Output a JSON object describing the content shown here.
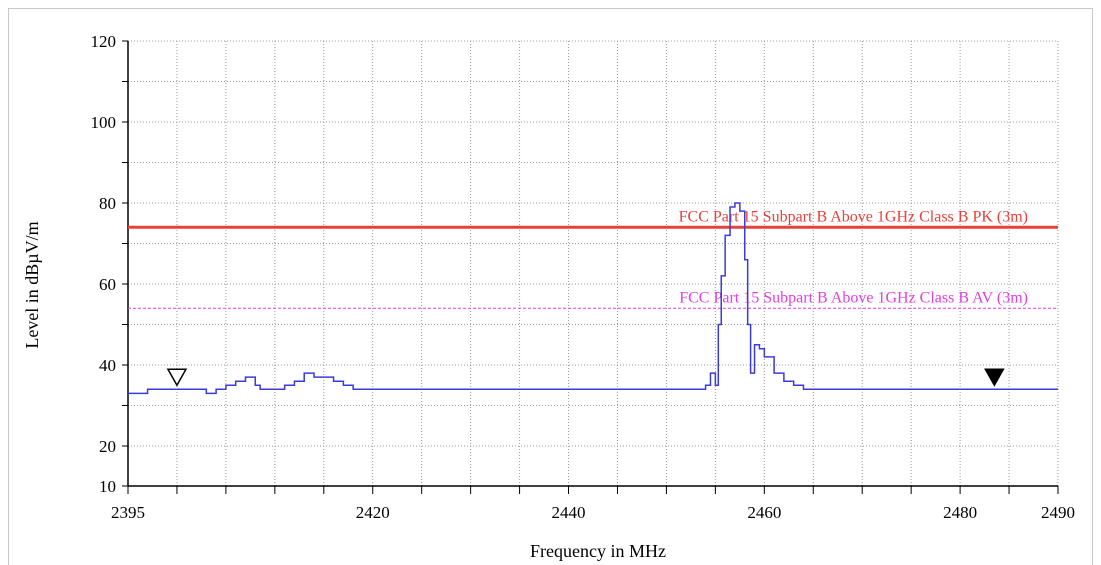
{
  "chart_data": {
    "type": "line",
    "xlabel": "Frequency in MHz",
    "ylabel": "Level in dBµV/m",
    "xlim": [
      2395,
      2490
    ],
    "ylim": [
      10,
      120
    ],
    "x_ticks": [
      2395,
      2420,
      2440,
      2460,
      2480,
      2490
    ],
    "y_ticks": [
      10,
      20,
      40,
      60,
      80,
      100,
      120
    ],
    "grid": true,
    "limits": [
      {
        "name": "FCC Part 15 Subpart B Above 1GHz Class B PK (3m)",
        "value": 74,
        "color": "#e8403a",
        "style": "solid"
      },
      {
        "name": "FCC Part 15 Subpart B Above 1GHz Class B AV (3m)",
        "value": 54,
        "color": "#e040e0",
        "style": "dashed"
      }
    ],
    "series": [
      {
        "color": "#3b3bdc",
        "x": [
          2395,
          2396,
          2397,
          2398,
          2399,
          2400,
          2401,
          2402,
          2403,
          2404,
          2405,
          2406,
          2407,
          2408,
          2408.5,
          2409,
          2410,
          2411,
          2412,
          2413,
          2413.5,
          2414,
          2415,
          2416,
          2417,
          2418,
          2419,
          2420,
          2422,
          2424,
          2426,
          2428,
          2430,
          2432,
          2434,
          2436,
          2438,
          2440,
          2442,
          2444,
          2446,
          2448,
          2450,
          2452,
          2453,
          2454,
          2454.5,
          2455,
          2455.3,
          2455.6,
          2456,
          2456.5,
          2457,
          2457.5,
          2458,
          2458.3,
          2458.6,
          2459,
          2459.5,
          2460,
          2461,
          2462,
          2463,
          2464,
          2465,
          2466,
          2468,
          2470,
          2472,
          2474,
          2476,
          2478,
          2480,
          2482,
          2484,
          2486,
          2488,
          2490
        ],
        "y": [
          33,
          33,
          34,
          34,
          34,
          34,
          34,
          34,
          33,
          34,
          35,
          36,
          37,
          35,
          34,
          34,
          34,
          35,
          36,
          38,
          38,
          37,
          37,
          36,
          35,
          34,
          34,
          34,
          34,
          34,
          34,
          34,
          34,
          34,
          34,
          34,
          34,
          34,
          34,
          34,
          34,
          34,
          34,
          34,
          34,
          35,
          38,
          35,
          50,
          62,
          72,
          79,
          80,
          78,
          66,
          50,
          38,
          45,
          44,
          42,
          38,
          36,
          35,
          34,
          34,
          34,
          34,
          34,
          34,
          34,
          34,
          34,
          34,
          34,
          34,
          34,
          34,
          34
        ]
      }
    ],
    "markers": [
      {
        "x": 2400,
        "y": 35,
        "style": "open"
      },
      {
        "x": 2483.5,
        "y": 35,
        "style": "filled"
      }
    ]
  }
}
